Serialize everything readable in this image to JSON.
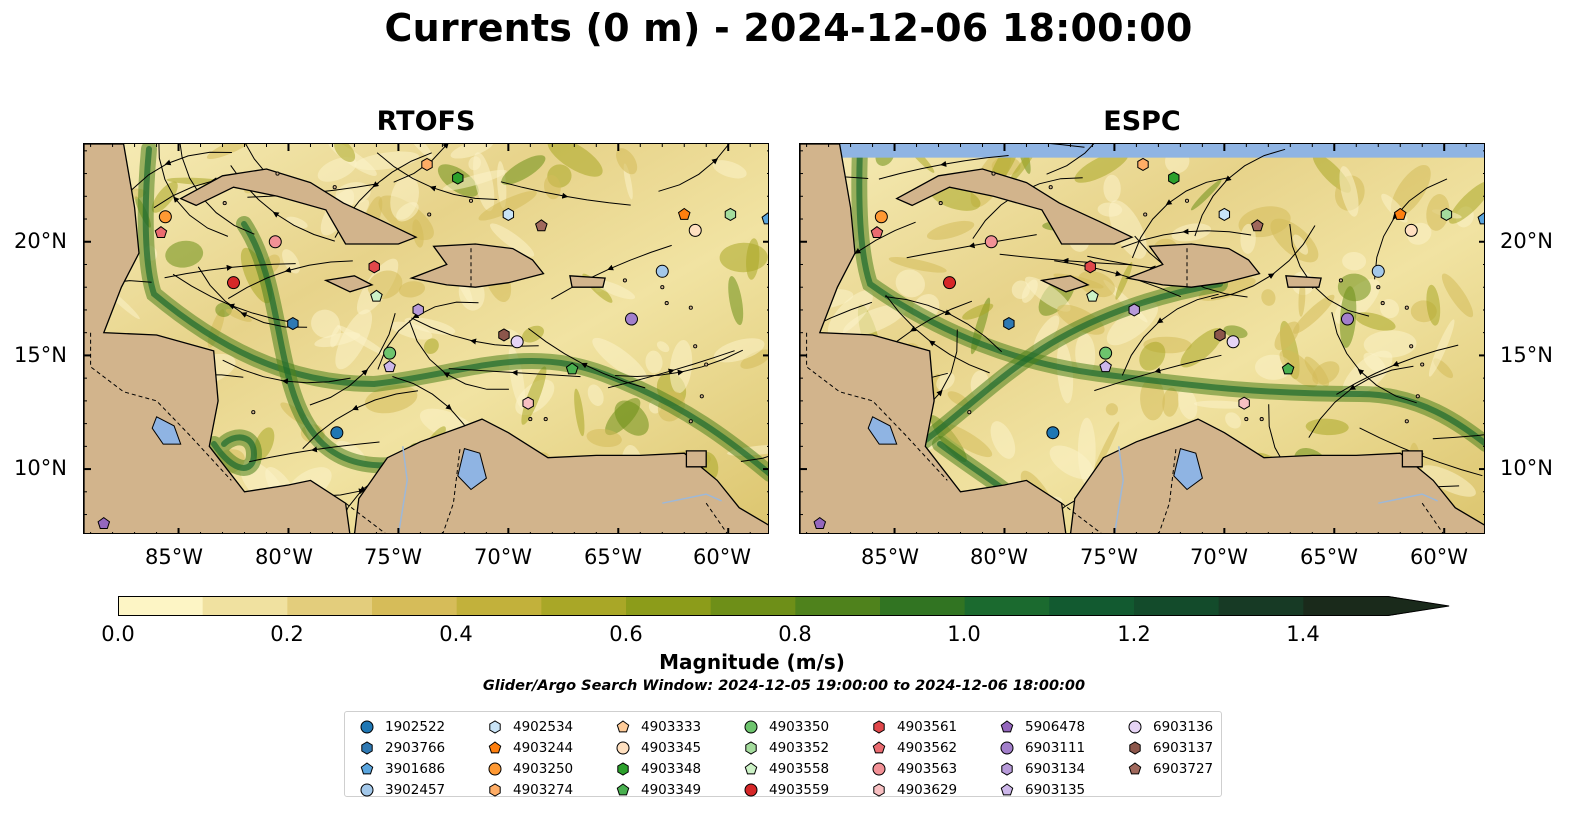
{
  "title": "Currents (0 m) - 2024-12-06 18:00:00",
  "panels": [
    {
      "name": "RTOFS"
    },
    {
      "name": "ESPC"
    }
  ],
  "axes": {
    "lat_labels": [
      "20°N",
      "15°N",
      "10°N"
    ],
    "lon_labels": [
      "85°W",
      "80°W",
      "75°W",
      "70°W",
      "65°W",
      "60°W"
    ]
  },
  "colorbar": {
    "label": "Magnitude (m/s)",
    "ticks": [
      "0.0",
      "0.2",
      "0.4",
      "0.6",
      "0.8",
      "1.0",
      "1.2",
      "1.4"
    ],
    "range": [
      0.0,
      1.5
    ],
    "extend": "max",
    "colors": [
      "#fdf5c5",
      "#f0e1a0",
      "#e3cd7c",
      "#d6bc59",
      "#c2b13b",
      "#a9a727",
      "#8c9c1a",
      "#6e8f18",
      "#4f821c",
      "#317422",
      "#1b6a2f",
      "#125a30",
      "#134b2b",
      "#173a25",
      "#1a2a1b"
    ]
  },
  "window_text": "Glider/Argo Search Window: 2024-12-05 19:00:00 to 2024-12-06 18:00:00",
  "colors": {
    "land": "#d2b48c",
    "lake": "#8fb4e3",
    "ocean_low": "#f3e6a8",
    "ocean_high": "#2f6f20",
    "nodata": "#8fb4e3"
  },
  "floats": [
    {
      "id": "1902522",
      "marker": "circle",
      "color": "#1f77b4"
    },
    {
      "id": "2903766",
      "marker": "hexagon",
      "color": "#2f79b3"
    },
    {
      "id": "3901686",
      "marker": "pentagon",
      "color": "#5aa5de"
    },
    {
      "id": "3902457",
      "marker": "circle",
      "color": "#a3c8ea"
    },
    {
      "id": "4902534",
      "marker": "hexagon",
      "color": "#c9e4f7"
    },
    {
      "id": "4903244",
      "marker": "pentagon",
      "color": "#ff7f0e"
    },
    {
      "id": "4903250",
      "marker": "circle",
      "color": "#ff9933"
    },
    {
      "id": "4903274",
      "marker": "hexagon",
      "color": "#ffad66"
    },
    {
      "id": "4903333",
      "marker": "pentagon",
      "color": "#ffcc99"
    },
    {
      "id": "4903345",
      "marker": "circle",
      "color": "#ffe0c0"
    },
    {
      "id": "4903348",
      "marker": "hexagon",
      "color": "#2ca02c"
    },
    {
      "id": "4903349",
      "marker": "pentagon",
      "color": "#49b04f"
    },
    {
      "id": "4903350",
      "marker": "circle",
      "color": "#6dc46d"
    },
    {
      "id": "4903352",
      "marker": "hexagon",
      "color": "#a4dc9d"
    },
    {
      "id": "4903558",
      "marker": "pentagon",
      "color": "#ccf2c6"
    },
    {
      "id": "4903559",
      "marker": "circle",
      "color": "#d62728"
    },
    {
      "id": "4903561",
      "marker": "hexagon",
      "color": "#e0474a"
    },
    {
      "id": "4903562",
      "marker": "pentagon",
      "color": "#ea6b70"
    },
    {
      "id": "4903563",
      "marker": "circle",
      "color": "#f29196"
    },
    {
      "id": "4903629",
      "marker": "hexagon",
      "color": "#f8c0c2"
    },
    {
      "id": "5906478",
      "marker": "pentagon",
      "color": "#9467bd"
    },
    {
      "id": "6903111",
      "marker": "circle",
      "color": "#a27fcb"
    },
    {
      "id": "6903134",
      "marker": "hexagon",
      "color": "#b79ad9"
    },
    {
      "id": "6903135",
      "marker": "pentagon",
      "color": "#cdb7ea"
    },
    {
      "id": "6903136",
      "marker": "circle",
      "color": "#e6d4f5"
    },
    {
      "id": "6903137",
      "marker": "hexagon",
      "color": "#8c564b"
    },
    {
      "id": "6903727",
      "marker": "pentagon",
      "color": "#a0685c"
    }
  ],
  "positions": [
    {
      "id": "1902522",
      "lon": -77.8,
      "lat": 11.6
    },
    {
      "id": "2903766",
      "lon": -79.8,
      "lat": 16.4
    },
    {
      "id": "3901686",
      "lon": -58.2,
      "lat": 21.0
    },
    {
      "id": "3902457",
      "lon": -63.0,
      "lat": 18.7
    },
    {
      "id": "4902534",
      "lon": -70.0,
      "lat": 21.2
    },
    {
      "id": "4903244",
      "lon": -62.0,
      "lat": 21.2
    },
    {
      "id": "4903250",
      "lon": -85.6,
      "lat": 21.1
    },
    {
      "id": "4903274",
      "lon": -73.7,
      "lat": 23.4
    },
    {
      "id": "4903333",
      "lon": -61.5,
      "lat": 20.5
    },
    {
      "id": "4903345",
      "lon": -61.5,
      "lat": 20.5
    },
    {
      "id": "4903348",
      "lon": -72.3,
      "lat": 22.8
    },
    {
      "id": "4903349",
      "lon": -67.1,
      "lat": 14.4
    },
    {
      "id": "4903350",
      "lon": -75.4,
      "lat": 15.1
    },
    {
      "id": "4903352",
      "lon": -59.9,
      "lat": 21.2
    },
    {
      "id": "4903558",
      "lon": -76.0,
      "lat": 17.6
    },
    {
      "id": "4903559",
      "lon": -82.5,
      "lat": 18.2
    },
    {
      "id": "4903561",
      "lon": -76.1,
      "lat": 18.9
    },
    {
      "id": "4903562",
      "lon": -85.8,
      "lat": 20.4
    },
    {
      "id": "4903563",
      "lon": -80.6,
      "lat": 20.0
    },
    {
      "id": "4903629",
      "lon": -69.1,
      "lat": 12.9
    },
    {
      "id": "5906478",
      "lon": -88.4,
      "lat": 7.6
    },
    {
      "id": "6903111",
      "lon": -64.4,
      "lat": 16.6
    },
    {
      "id": "6903134",
      "lon": -74.1,
      "lat": 17.0
    },
    {
      "id": "6903135",
      "lon": -75.4,
      "lat": 14.5
    },
    {
      "id": "6903136",
      "lon": -69.6,
      "lat": 15.6
    },
    {
      "id": "6903137",
      "lon": -70.2,
      "lat": 15.9
    },
    {
      "id": "6903727",
      "lon": -68.5,
      "lat": 20.7
    }
  ]
}
